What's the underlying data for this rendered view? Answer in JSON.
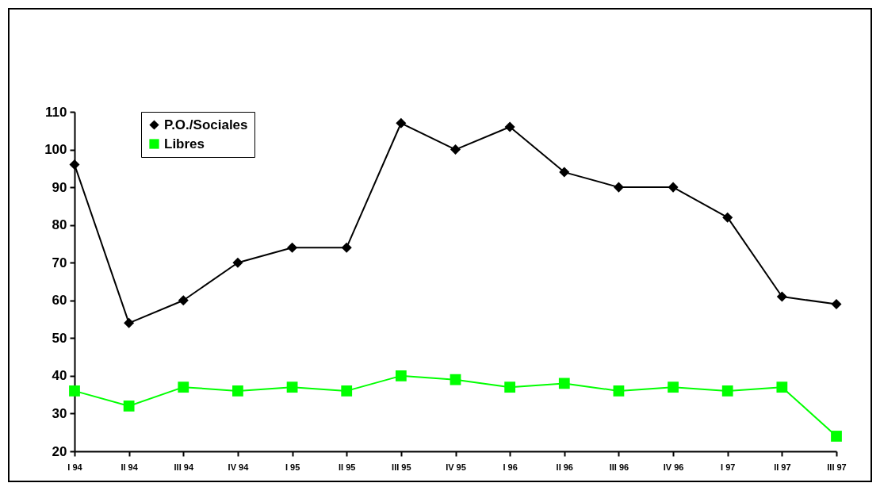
{
  "chart_data": {
    "type": "line",
    "categories": [
      "I 94",
      "II 94",
      "III 94",
      "IV 94",
      "I 95",
      "II 95",
      "III 95",
      "IV 95",
      "I 96",
      "II 96",
      "III 96",
      "IV 96",
      "I 97",
      "II 97",
      "III 97"
    ],
    "series": [
      {
        "name": "P.O./Sociales",
        "color": "#000000",
        "marker": "diamond",
        "values": [
          96,
          54,
          60,
          70,
          74,
          74,
          107,
          100,
          106,
          94,
          90,
          90,
          82,
          61,
          59
        ]
      },
      {
        "name": "Libres",
        "color": "#00ff00",
        "marker": "square",
        "values": [
          36,
          32,
          37,
          36,
          37,
          36,
          40,
          39,
          37,
          38,
          36,
          37,
          36,
          37,
          24
        ]
      }
    ],
    "ylim": [
      20,
      110
    ],
    "yticks": [
      20,
      30,
      40,
      50,
      60,
      70,
      80,
      90,
      100,
      110
    ],
    "grid": false,
    "legend": "top left",
    "line_style": "solid"
  }
}
